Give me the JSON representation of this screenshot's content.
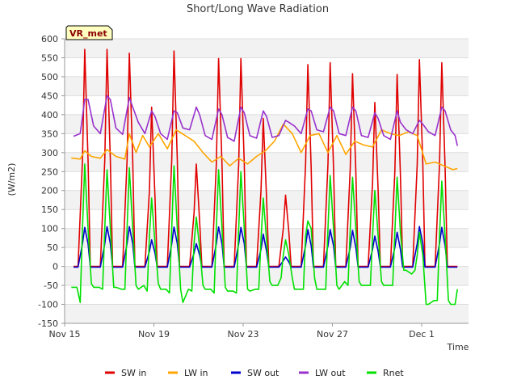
{
  "chart_data": {
    "type": "line",
    "title": "Short/Long Wave Radiation",
    "xlabel": "Time",
    "ylabel": "(W/m2)",
    "site_label": "VR_met",
    "x_unit": "days",
    "x_start": "Nov 15",
    "x_tick_labels": [
      "Nov 15",
      "Nov 19",
      "Nov 23",
      "Nov 27",
      "Dec 1"
    ],
    "x_tick_values": [
      0,
      4,
      8,
      12,
      16
    ],
    "xlim": [
      0,
      18.1
    ],
    "ylim": [
      -150,
      600
    ],
    "y_ticks": [
      -150,
      -100,
      -50,
      0,
      50,
      100,
      150,
      200,
      250,
      300,
      350,
      400,
      450,
      500,
      550,
      600
    ],
    "grid": true,
    "legend_position": "bottom",
    "series": [
      {
        "name": "SW in",
        "color": "#e00000",
        "x": [
          0.4,
          0.6,
          0.8,
          0.9,
          1.05,
          1.15,
          1.3,
          1.6,
          1.8,
          1.9,
          2.05,
          2.15,
          2.3,
          2.6,
          2.8,
          2.9,
          3.05,
          3.15,
          3.3,
          3.6,
          3.8,
          3.9,
          4.05,
          4.15,
          4.3,
          4.6,
          4.8,
          4.9,
          5.05,
          5.15,
          5.3,
          5.6,
          5.8,
          5.9,
          6.05,
          6.15,
          6.3,
          6.6,
          6.8,
          6.9,
          7.05,
          7.15,
          7.3,
          7.6,
          7.8,
          7.9,
          8.05,
          8.15,
          8.3,
          8.6,
          8.8,
          8.9,
          9.05,
          9.15,
          9.3,
          9.6,
          9.8,
          9.9,
          10.05,
          10.15,
          10.3,
          10.6,
          10.8,
          10.9,
          11.05,
          11.15,
          11.3,
          11.6,
          11.8,
          11.9,
          12.05,
          12.15,
          12.3,
          12.6,
          12.8,
          12.9,
          13.05,
          13.15,
          13.3,
          13.6,
          13.8,
          13.9,
          14.05,
          14.15,
          14.3,
          14.6,
          14.8,
          14.9,
          15.05,
          15.15,
          15.3,
          15.6,
          15.8,
          15.9,
          16.05,
          16.15,
          16.3,
          16.6,
          16.8,
          16.9,
          17.05,
          17.15,
          17.3,
          17.6
        ],
        "y": [
          0,
          0,
          280,
          572,
          280,
          0,
          0,
          0,
          280,
          572,
          280,
          0,
          0,
          0,
          280,
          562,
          280,
          0,
          0,
          0,
          200,
          420,
          180,
          0,
          0,
          0,
          280,
          568,
          280,
          0,
          0,
          0,
          140,
          270,
          120,
          0,
          0,
          0,
          270,
          548,
          270,
          0,
          0,
          0,
          270,
          548,
          270,
          0,
          0,
          0,
          200,
          390,
          180,
          0,
          0,
          0,
          100,
          188,
          90,
          0,
          0,
          0,
          270,
          532,
          260,
          0,
          0,
          0,
          270,
          537,
          260,
          0,
          0,
          0,
          260,
          508,
          250,
          0,
          0,
          0,
          220,
          432,
          200,
          0,
          0,
          0,
          250,
          506,
          240,
          0,
          0,
          0,
          270,
          545,
          270,
          0,
          0,
          0,
          270,
          537,
          260,
          0,
          0,
          0
        ]
      },
      {
        "name": "LW in",
        "color": "#ffa500",
        "x": [
          0.3,
          0.7,
          0.9,
          1.2,
          1.6,
          1.9,
          2.3,
          2.7,
          2.9,
          3.2,
          3.5,
          3.8,
          4.2,
          4.6,
          5.0,
          5.4,
          5.8,
          6.2,
          6.6,
          7.0,
          7.4,
          7.8,
          8.2,
          8.6,
          9.0,
          9.4,
          9.8,
          10.2,
          10.6,
          11.0,
          11.4,
          11.8,
          12.2,
          12.6,
          13.0,
          13.4,
          13.8,
          14.2,
          14.6,
          15.0,
          15.4,
          15.8,
          16.2,
          16.6,
          17.0,
          17.4,
          17.6
        ],
        "y": [
          286,
          283,
          305,
          290,
          285,
          308,
          290,
          283,
          350,
          300,
          345,
          315,
          350,
          310,
          360,
          345,
          330,
          300,
          275,
          290,
          265,
          285,
          270,
          290,
          305,
          330,
          375,
          350,
          300,
          345,
          350,
          300,
          345,
          295,
          330,
          320,
          315,
          360,
          350,
          345,
          355,
          345,
          270,
          275,
          265,
          255,
          258
        ]
      },
      {
        "name": "SW out",
        "color": "#0000cc",
        "x": [
          0.4,
          0.6,
          0.8,
          0.9,
          1.05,
          1.15,
          1.3,
          1.6,
          1.8,
          1.9,
          2.05,
          2.15,
          2.3,
          2.6,
          2.8,
          2.9,
          3.05,
          3.15,
          3.3,
          3.6,
          3.8,
          3.9,
          4.05,
          4.15,
          4.3,
          4.6,
          4.8,
          4.9,
          5.05,
          5.15,
          5.3,
          5.6,
          5.8,
          5.9,
          6.05,
          6.15,
          6.3,
          6.6,
          6.8,
          6.9,
          7.05,
          7.15,
          7.3,
          7.6,
          7.8,
          7.9,
          8.05,
          8.15,
          8.3,
          8.6,
          8.8,
          8.9,
          9.05,
          9.15,
          9.3,
          9.6,
          9.8,
          9.9,
          10.05,
          10.15,
          10.3,
          10.6,
          10.8,
          10.9,
          11.05,
          11.15,
          11.3,
          11.6,
          11.8,
          11.9,
          12.05,
          12.15,
          12.3,
          12.6,
          12.8,
          12.9,
          13.05,
          13.15,
          13.3,
          13.6,
          13.8,
          13.9,
          14.05,
          14.15,
          14.3,
          14.6,
          14.8,
          14.9,
          15.05,
          15.15,
          15.3,
          15.6,
          15.8,
          15.9,
          16.05,
          16.15,
          16.3,
          16.6,
          16.8,
          16.9,
          17.05,
          17.15,
          17.3,
          17.6
        ],
        "y": [
          -2,
          -2,
          60,
          103,
          60,
          -2,
          -2,
          -2,
          60,
          105,
          60,
          -2,
          -2,
          -2,
          60,
          105,
          60,
          -2,
          -2,
          -2,
          40,
          70,
          35,
          -2,
          -2,
          -2,
          60,
          104,
          60,
          -2,
          -2,
          -2,
          35,
          60,
          30,
          -2,
          -2,
          -2,
          60,
          104,
          60,
          -2,
          -2,
          -2,
          60,
          103,
          60,
          -2,
          -2,
          -2,
          45,
          85,
          40,
          -2,
          -2,
          -2,
          15,
          25,
          12,
          -2,
          -2,
          -2,
          55,
          97,
          55,
          -2,
          -2,
          -2,
          55,
          97,
          55,
          -2,
          -2,
          -2,
          50,
          95,
          50,
          -2,
          -2,
          -2,
          45,
          80,
          40,
          -2,
          -2,
          -2,
          50,
          90,
          45,
          -2,
          -2,
          -2,
          60,
          105,
          60,
          -2,
          -2,
          -2,
          60,
          103,
          55,
          -2,
          -2,
          -2
        ]
      },
      {
        "name": "LW out",
        "color": "#9932cc",
        "x": [
          0.4,
          0.7,
          0.9,
          1.05,
          1.3,
          1.6,
          1.9,
          2.05,
          2.3,
          2.6,
          2.9,
          3.05,
          3.3,
          3.6,
          3.9,
          4.05,
          4.3,
          4.6,
          4.9,
          5.05,
          5.3,
          5.6,
          5.9,
          6.05,
          6.3,
          6.6,
          6.9,
          7.05,
          7.3,
          7.6,
          7.9,
          8.05,
          8.3,
          8.6,
          8.9,
          9.05,
          9.3,
          9.6,
          9.9,
          10.05,
          10.3,
          10.6,
          10.9,
          11.05,
          11.3,
          11.6,
          11.9,
          12.05,
          12.3,
          12.6,
          12.9,
          13.05,
          13.3,
          13.6,
          13.9,
          14.05,
          14.3,
          14.6,
          14.9,
          15.05,
          15.3,
          15.6,
          15.9,
          16.05,
          16.3,
          16.6,
          16.9,
          17.05,
          17.3,
          17.5,
          17.6
        ],
        "y": [
          343,
          350,
          440,
          440,
          370,
          350,
          450,
          440,
          365,
          348,
          445,
          420,
          380,
          350,
          410,
          395,
          350,
          335,
          410,
          405,
          365,
          360,
          420,
          400,
          345,
          335,
          415,
          400,
          340,
          330,
          420,
          405,
          345,
          338,
          410,
          395,
          340,
          345,
          385,
          380,
          370,
          350,
          415,
          410,
          360,
          355,
          420,
          410,
          350,
          345,
          420,
          410,
          345,
          340,
          405,
          390,
          345,
          335,
          410,
          380,
          360,
          350,
          385,
          375,
          355,
          345,
          420,
          410,
          360,
          345,
          318
        ]
      },
      {
        "name": "Rnet",
        "color": "#00e000",
        "x": [
          0.3,
          0.55,
          0.7,
          0.8,
          0.9,
          1.05,
          1.2,
          1.3,
          1.55,
          1.7,
          1.8,
          1.9,
          2.05,
          2.2,
          2.3,
          2.55,
          2.7,
          2.8,
          2.9,
          3.05,
          3.2,
          3.3,
          3.55,
          3.7,
          3.8,
          3.9,
          4.05,
          4.2,
          4.3,
          4.55,
          4.7,
          4.8,
          4.9,
          5.05,
          5.2,
          5.3,
          5.55,
          5.7,
          5.8,
          5.9,
          6.05,
          6.2,
          6.3,
          6.55,
          6.7,
          6.8,
          6.9,
          7.05,
          7.2,
          7.3,
          7.55,
          7.7,
          7.8,
          7.9,
          8.05,
          8.2,
          8.3,
          8.55,
          8.7,
          8.8,
          8.9,
          9.05,
          9.2,
          9.3,
          9.55,
          9.7,
          9.8,
          9.9,
          10.05,
          10.2,
          10.3,
          10.55,
          10.7,
          10.8,
          10.9,
          11.05,
          11.2,
          11.3,
          11.55,
          11.7,
          11.8,
          11.9,
          12.05,
          12.2,
          12.3,
          12.55,
          12.7,
          12.8,
          12.9,
          13.05,
          13.2,
          13.3,
          13.55,
          13.7,
          13.8,
          13.9,
          14.05,
          14.2,
          14.3,
          14.55,
          14.7,
          14.8,
          14.9,
          15.05,
          15.2,
          15.3,
          15.55,
          15.7,
          15.8,
          15.9,
          16.05,
          16.2,
          16.3,
          16.55,
          16.7,
          16.8,
          16.9,
          17.05,
          17.2,
          17.3,
          17.5,
          17.6
        ],
        "y": [
          -55,
          -55,
          -95,
          100,
          270,
          100,
          -45,
          -55,
          -55,
          -60,
          100,
          255,
          100,
          -55,
          -55,
          -60,
          -60,
          100,
          260,
          100,
          -50,
          -60,
          -50,
          -65,
          80,
          180,
          60,
          -45,
          -60,
          -60,
          -70,
          100,
          265,
          100,
          -60,
          -95,
          -60,
          -65,
          60,
          130,
          50,
          -50,
          -60,
          -60,
          -70,
          100,
          255,
          100,
          -55,
          -65,
          -65,
          -70,
          100,
          250,
          100,
          -60,
          -65,
          -60,
          -60,
          70,
          180,
          70,
          -40,
          -50,
          -50,
          -30,
          30,
          70,
          30,
          -30,
          -60,
          -60,
          -60,
          80,
          120,
          100,
          -30,
          -60,
          -60,
          -60,
          100,
          240,
          100,
          -50,
          -60,
          -40,
          -50,
          100,
          235,
          100,
          -40,
          -50,
          -50,
          -50,
          80,
          200,
          80,
          -40,
          -50,
          -50,
          -50,
          90,
          235,
          90,
          -10,
          -10,
          -20,
          -10,
          30,
          90,
          30,
          -100,
          -100,
          -90,
          -90,
          80,
          225,
          80,
          -90,
          -100,
          -100,
          -60
        ]
      }
    ]
  }
}
